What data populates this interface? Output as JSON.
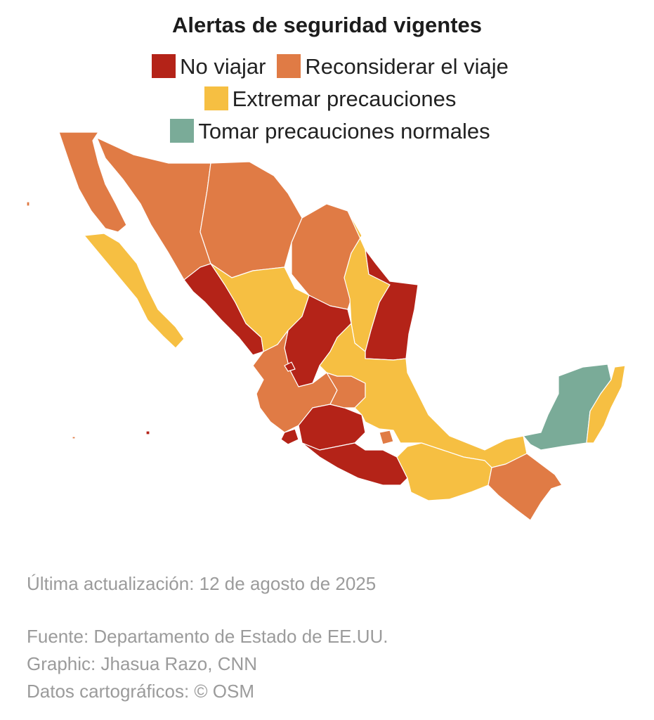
{
  "title": "Alertas de seguridad vigentes",
  "legend": [
    {
      "label": "No viajar",
      "color": "#b42318",
      "icon": "square-swatch"
    },
    {
      "label": "Reconsiderar el viaje",
      "color": "#e07b45",
      "icon": "square-swatch"
    },
    {
      "label": "Extremar precauciones",
      "color": "#f6bf42",
      "icon": "square-swatch"
    },
    {
      "label": "Tomar precauciones normales",
      "color": "#7aab98",
      "icon": "square-swatch"
    }
  ],
  "map_regions": [
    {
      "name": "northwest-baja",
      "level": "Reconsiderar el viaje"
    },
    {
      "name": "baja-sur",
      "level": "Extremar precauciones"
    },
    {
      "name": "sonora",
      "level": "Reconsiderar el viaje"
    },
    {
      "name": "chihuahua",
      "level": "Reconsiderar el viaje"
    },
    {
      "name": "coahuila",
      "level": "Reconsiderar el viaje"
    },
    {
      "name": "sinaloa",
      "level": "No viajar"
    },
    {
      "name": "durango",
      "level": "Extremar precauciones"
    },
    {
      "name": "nuevo-leon",
      "level": "Extremar precauciones"
    },
    {
      "name": "tamaulipas",
      "level": "No viajar"
    },
    {
      "name": "zacatecas",
      "level": "No viajar"
    },
    {
      "name": "colima-area",
      "level": "No viajar"
    },
    {
      "name": "michoacan",
      "level": "No viajar"
    },
    {
      "name": "guerrero",
      "level": "No viajar"
    },
    {
      "name": "jalisco",
      "level": "Reconsiderar el viaje"
    },
    {
      "name": "guanajuato",
      "level": "Reconsiderar el viaje"
    },
    {
      "name": "morelos",
      "level": "Reconsiderar el viaje"
    },
    {
      "name": "chiapas",
      "level": "Reconsiderar el viaje"
    },
    {
      "name": "central-states",
      "level": "Extremar precauciones"
    },
    {
      "name": "oaxaca",
      "level": "Extremar precauciones"
    },
    {
      "name": "campeche-yucatan",
      "level": "Tomar precauciones normales"
    },
    {
      "name": "quintana-roo",
      "level": "Extremar precauciones"
    }
  ],
  "footer": {
    "updated": "Última actualización: 12 de agosto de 2025",
    "source": "Fuente: Departamento de Estado de EE.UU.",
    "graphic": "Graphic: Jhasua Razo, CNN",
    "osm": "Datos cartográficos: © OSM"
  }
}
